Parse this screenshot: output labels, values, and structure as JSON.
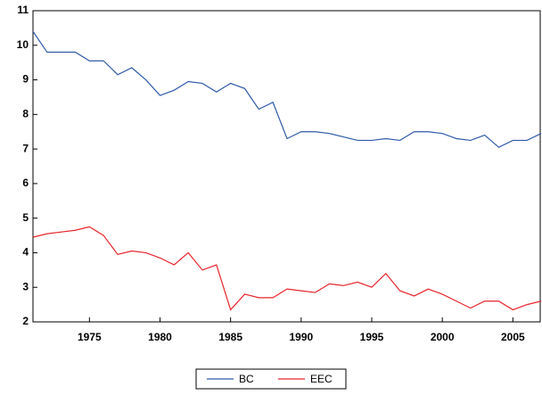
{
  "chart_data": {
    "type": "line",
    "x": [
      1971,
      1972,
      1973,
      1974,
      1975,
      1976,
      1977,
      1978,
      1979,
      1980,
      1981,
      1982,
      1983,
      1984,
      1985,
      1986,
      1987,
      1988,
      1989,
      1990,
      1991,
      1992,
      1993,
      1994,
      1995,
      1996,
      1997,
      1998,
      1999,
      2000,
      2001,
      2002,
      2003,
      2004,
      2005,
      2006,
      2007
    ],
    "series": [
      {
        "name": "BC",
        "color": "#2f5aa8",
        "values": [
          10.4,
          9.8,
          9.8,
          9.8,
          9.55,
          9.55,
          9.15,
          9.35,
          9.0,
          8.55,
          8.7,
          8.95,
          8.9,
          8.65,
          8.9,
          8.75,
          8.15,
          8.35,
          7.3,
          7.5,
          7.5,
          7.45,
          7.35,
          7.25,
          7.25,
          7.3,
          7.25,
          7.5,
          7.5,
          7.45,
          7.3,
          7.25,
          7.4,
          7.05,
          7.25,
          7.25,
          7.45
        ]
      },
      {
        "name": "EEC",
        "color": "#e8242b",
        "values": [
          4.45,
          4.55,
          4.6,
          4.65,
          4.75,
          4.5,
          3.95,
          4.05,
          4.0,
          3.85,
          3.65,
          4.0,
          3.5,
          3.65,
          2.35,
          2.8,
          2.7,
          2.7,
          2.95,
          2.9,
          2.85,
          3.1,
          3.05,
          3.15,
          3.0,
          3.4,
          2.9,
          2.75,
          2.95,
          2.8,
          2.6,
          2.4,
          2.6,
          2.6,
          2.35,
          2.5,
          2.6
        ]
      }
    ],
    "xlim": [
      1971,
      2007
    ],
    "xticks": [
      1975,
      1980,
      1985,
      1990,
      1995,
      2000,
      2005
    ],
    "ylim": [
      2,
      11
    ],
    "yticks": [
      2,
      3,
      4,
      5,
      6,
      7,
      8,
      9,
      10,
      11
    ],
    "grid": false,
    "legend": "bottom"
  }
}
